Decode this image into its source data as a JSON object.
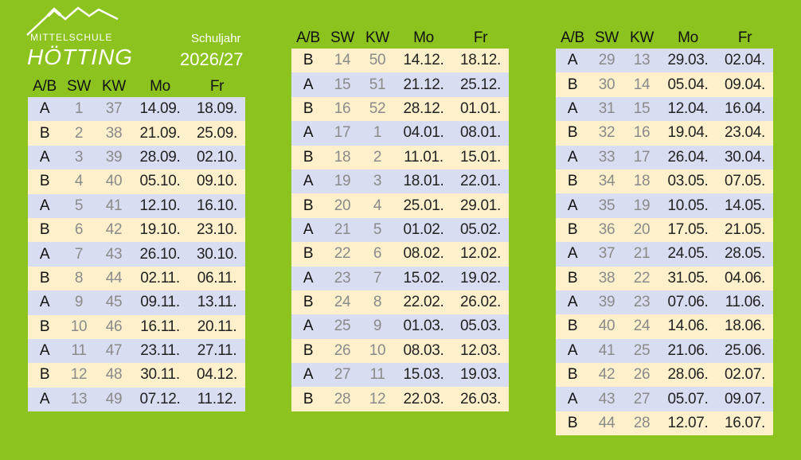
{
  "header": {
    "school_line": "MITTELSCHULE",
    "school_name": "HÖTTING",
    "year_label": "Schuljahr",
    "year": "2026/27"
  },
  "tables": [
    {
      "columns": [
        "A/B",
        "SW",
        "KW",
        "Mo",
        "Fr"
      ],
      "rows": [
        [
          "A",
          "1",
          "37",
          "14.09.",
          "18.09."
        ],
        [
          "B",
          "2",
          "38",
          "21.09.",
          "25.09."
        ],
        [
          "A",
          "3",
          "39",
          "28.09.",
          "02.10."
        ],
        [
          "B",
          "4",
          "40",
          "05.10.",
          "09.10."
        ],
        [
          "A",
          "5",
          "41",
          "12.10.",
          "16.10."
        ],
        [
          "B",
          "6",
          "42",
          "19.10.",
          "23.10."
        ],
        [
          "A",
          "7",
          "43",
          "26.10.",
          "30.10."
        ],
        [
          "B",
          "8",
          "44",
          "02.11.",
          "06.11."
        ],
        [
          "A",
          "9",
          "45",
          "09.11.",
          "13.11."
        ],
        [
          "B",
          "10",
          "46",
          "16.11.",
          "20.11."
        ],
        [
          "A",
          "11",
          "47",
          "23.11.",
          "27.11."
        ],
        [
          "B",
          "12",
          "48",
          "30.11.",
          "04.12."
        ],
        [
          "A",
          "13",
          "49",
          "07.12.",
          "11.12."
        ]
      ]
    },
    {
      "columns": [
        "A/B",
        "SW",
        "KW",
        "Mo",
        "Fr"
      ],
      "rows": [
        [
          "B",
          "14",
          "50",
          "14.12.",
          "18.12."
        ],
        [
          "A",
          "15",
          "51",
          "21.12.",
          "25.12."
        ],
        [
          "B",
          "16",
          "52",
          "28.12.",
          "01.01."
        ],
        [
          "A",
          "17",
          "1",
          "04.01.",
          "08.01."
        ],
        [
          "B",
          "18",
          "2",
          "11.01.",
          "15.01."
        ],
        [
          "A",
          "19",
          "3",
          "18.01.",
          "22.01."
        ],
        [
          "B",
          "20",
          "4",
          "25.01.",
          "29.01."
        ],
        [
          "A",
          "21",
          "5",
          "01.02.",
          "05.02."
        ],
        [
          "B",
          "22",
          "6",
          "08.02.",
          "12.02."
        ],
        [
          "A",
          "23",
          "7",
          "15.02.",
          "19.02."
        ],
        [
          "B",
          "24",
          "8",
          "22.02.",
          "26.02."
        ],
        [
          "A",
          "25",
          "9",
          "01.03.",
          "05.03."
        ],
        [
          "B",
          "26",
          "10",
          "08.03.",
          "12.03."
        ],
        [
          "A",
          "27",
          "11",
          "15.03.",
          "19.03."
        ],
        [
          "B",
          "28",
          "12",
          "22.03.",
          "26.03."
        ]
      ]
    },
    {
      "columns": [
        "A/B",
        "SW",
        "KW",
        "Mo",
        "Fr"
      ],
      "rows": [
        [
          "A",
          "29",
          "13",
          "29.03.",
          "02.04."
        ],
        [
          "B",
          "30",
          "14",
          "05.04.",
          "09.04."
        ],
        [
          "A",
          "31",
          "15",
          "12.04.",
          "16.04."
        ],
        [
          "B",
          "32",
          "16",
          "19.04.",
          "23.04."
        ],
        [
          "A",
          "33",
          "17",
          "26.04.",
          "30.04."
        ],
        [
          "B",
          "34",
          "18",
          "03.05.",
          "07.05."
        ],
        [
          "A",
          "35",
          "19",
          "10.05.",
          "14.05."
        ],
        [
          "B",
          "36",
          "20",
          "17.05.",
          "21.05."
        ],
        [
          "A",
          "37",
          "21",
          "24.05.",
          "28.05."
        ],
        [
          "B",
          "38",
          "22",
          "31.05.",
          "04.06."
        ],
        [
          "A",
          "39",
          "23",
          "07.06.",
          "11.06."
        ],
        [
          "B",
          "40",
          "24",
          "14.06.",
          "18.06."
        ],
        [
          "A",
          "41",
          "25",
          "21.06.",
          "25.06."
        ],
        [
          "B",
          "42",
          "26",
          "28.06.",
          "02.07."
        ],
        [
          "A",
          "43",
          "27",
          "05.07.",
          "09.07."
        ],
        [
          "B",
          "44",
          "28",
          "12.07.",
          "16.07."
        ]
      ]
    }
  ]
}
